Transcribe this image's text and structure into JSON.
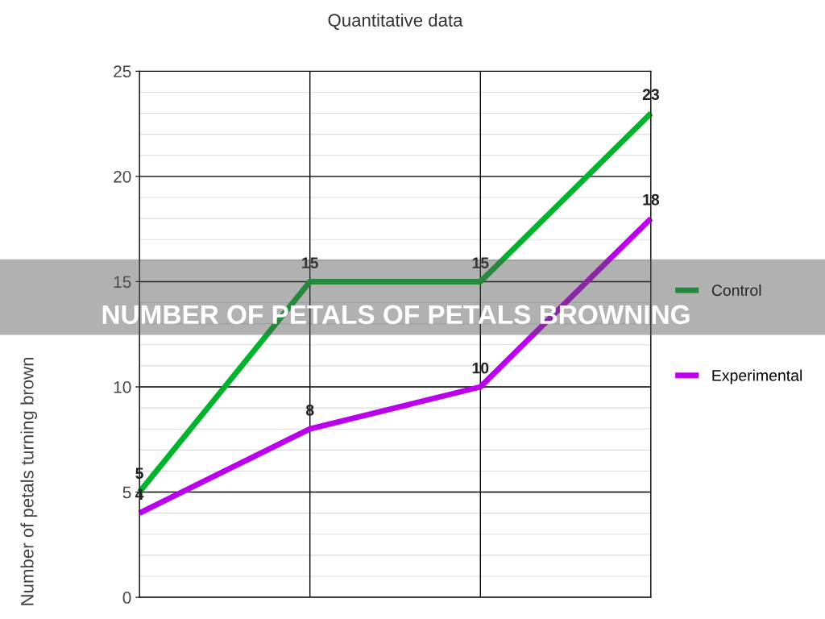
{
  "chart_data": {
    "type": "line",
    "title": "Quantitative data",
    "ylabel": "Number of petals turning brown",
    "annotations": [
      "NUMBER OF PETALS OF PETALS BROWNING"
    ],
    "categories": [
      null,
      null,
      null,
      null
    ],
    "series": [
      {
        "name": "Control",
        "color": "#00b32c",
        "values": [
          5,
          15,
          15,
          23
        ]
      },
      {
        "name": "Experimental",
        "color": "#bb00ee",
        "values": [
          4,
          8,
          10,
          18
        ]
      }
    ],
    "ylim": [
      0,
      25
    ],
    "yticks": [
      0,
      5,
      10,
      15,
      20,
      25
    ],
    "grid": true,
    "legend": "right",
    "data_labels": true,
    "marker": "none",
    "line_style": "solid"
  }
}
